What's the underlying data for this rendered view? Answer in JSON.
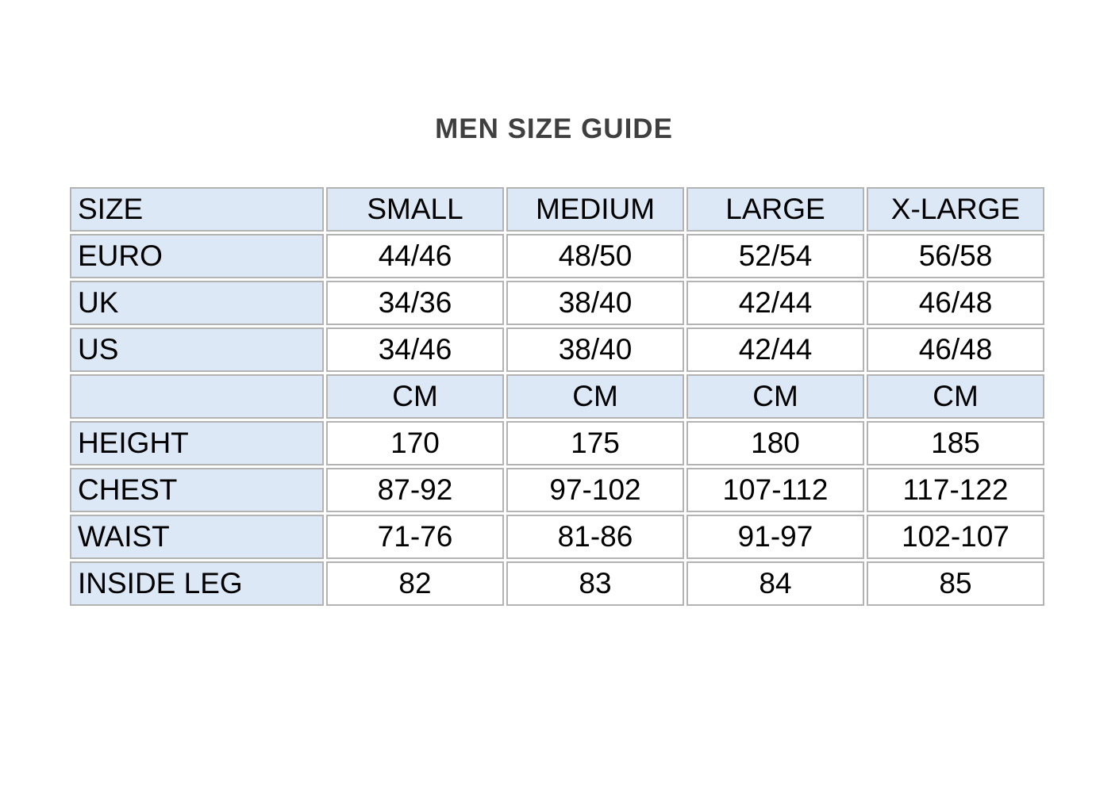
{
  "title": "MEN SIZE GUIDE",
  "colors": {
    "shaded_cell_bg": "#dce8f5",
    "cell_border": "#b3b3b3",
    "table_text": "#000000",
    "title_text": "#3f3f3f",
    "page_bg": "#ffffff"
  },
  "table": {
    "columns": [
      "SIZE",
      "SMALL",
      "MEDIUM",
      "LARGE",
      "X-LARGE"
    ],
    "rows": [
      {
        "label": "EURO",
        "values": [
          "44/46",
          "48/50",
          "52/54",
          "56/58"
        ],
        "row_shaded": false
      },
      {
        "label": "UK",
        "values": [
          "34/36",
          "38/40",
          "42/44",
          "46/48"
        ],
        "row_shaded": false
      },
      {
        "label": "US",
        "values": [
          "34/46",
          "38/40",
          "42/44",
          "46/48"
        ],
        "row_shaded": false
      },
      {
        "label": "",
        "values": [
          "CM",
          "CM",
          "CM",
          "CM"
        ],
        "row_shaded": true
      },
      {
        "label": "HEIGHT",
        "values": [
          "170",
          "175",
          "180",
          "185"
        ],
        "row_shaded": false
      },
      {
        "label": "CHEST",
        "values": [
          "87-92",
          "97-102",
          "107-112",
          "117-122"
        ],
        "row_shaded": false
      },
      {
        "label": "WAIST",
        "values": [
          "71-76",
          "81-86",
          "91-97",
          "102-107"
        ],
        "row_shaded": false
      },
      {
        "label": "INSIDE LEG",
        "values": [
          "82",
          "83",
          "84",
          "85"
        ],
        "row_shaded": false
      }
    ]
  }
}
